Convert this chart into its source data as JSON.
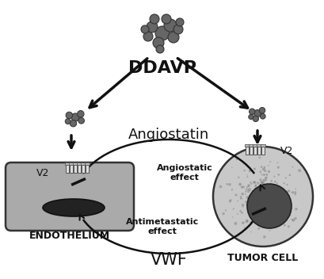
{
  "bg_color": "#ffffff",
  "title_ddavp": "DDAVP",
  "title_angiostatin": "Angiostatin",
  "title_vwf": "VWF",
  "label_endothelium": "ENDOTHELIUM",
  "label_tumor": "TUMOR CELL",
  "label_v2_left": "V2",
  "label_v2_right": "V2",
  "label_angiostatic": "Angiostatic\neffect",
  "label_antimetastatic": "Antimetastatic\neffect",
  "endothelium_fill": "#aaaaaa",
  "nucleus_endo": "#222222",
  "tumor_fill": "#cccccc",
  "nucleus_tumor": "#444444",
  "arrow_color": "#111111",
  "mol_color": "#666666",
  "receptor_color": "#dddddd"
}
